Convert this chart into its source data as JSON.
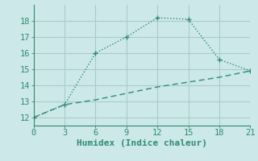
{
  "xlabel": "Humidex (Indice chaleur)",
  "line1_x": [
    0,
    3,
    6,
    9,
    12,
    15,
    18,
    21
  ],
  "line1_y": [
    12,
    12.8,
    16,
    17,
    18.2,
    18.1,
    15.6,
    14.9
  ],
  "line2_x": [
    0,
    3,
    6,
    9,
    12,
    15,
    18,
    21
  ],
  "line2_y": [
    12,
    12.8,
    13.1,
    13.5,
    13.9,
    14.2,
    14.5,
    14.9
  ],
  "line_color": "#2e8b72",
  "bg_color": "#cce8e8",
  "grid_color": "#aacccc",
  "xlim": [
    0,
    21
  ],
  "ylim": [
    11.5,
    19.0
  ],
  "xticks": [
    0,
    3,
    6,
    9,
    12,
    15,
    18,
    21
  ],
  "yticks": [
    12,
    13,
    14,
    15,
    16,
    17,
    18
  ],
  "tick_fontsize": 7.5,
  "xlabel_fontsize": 8
}
